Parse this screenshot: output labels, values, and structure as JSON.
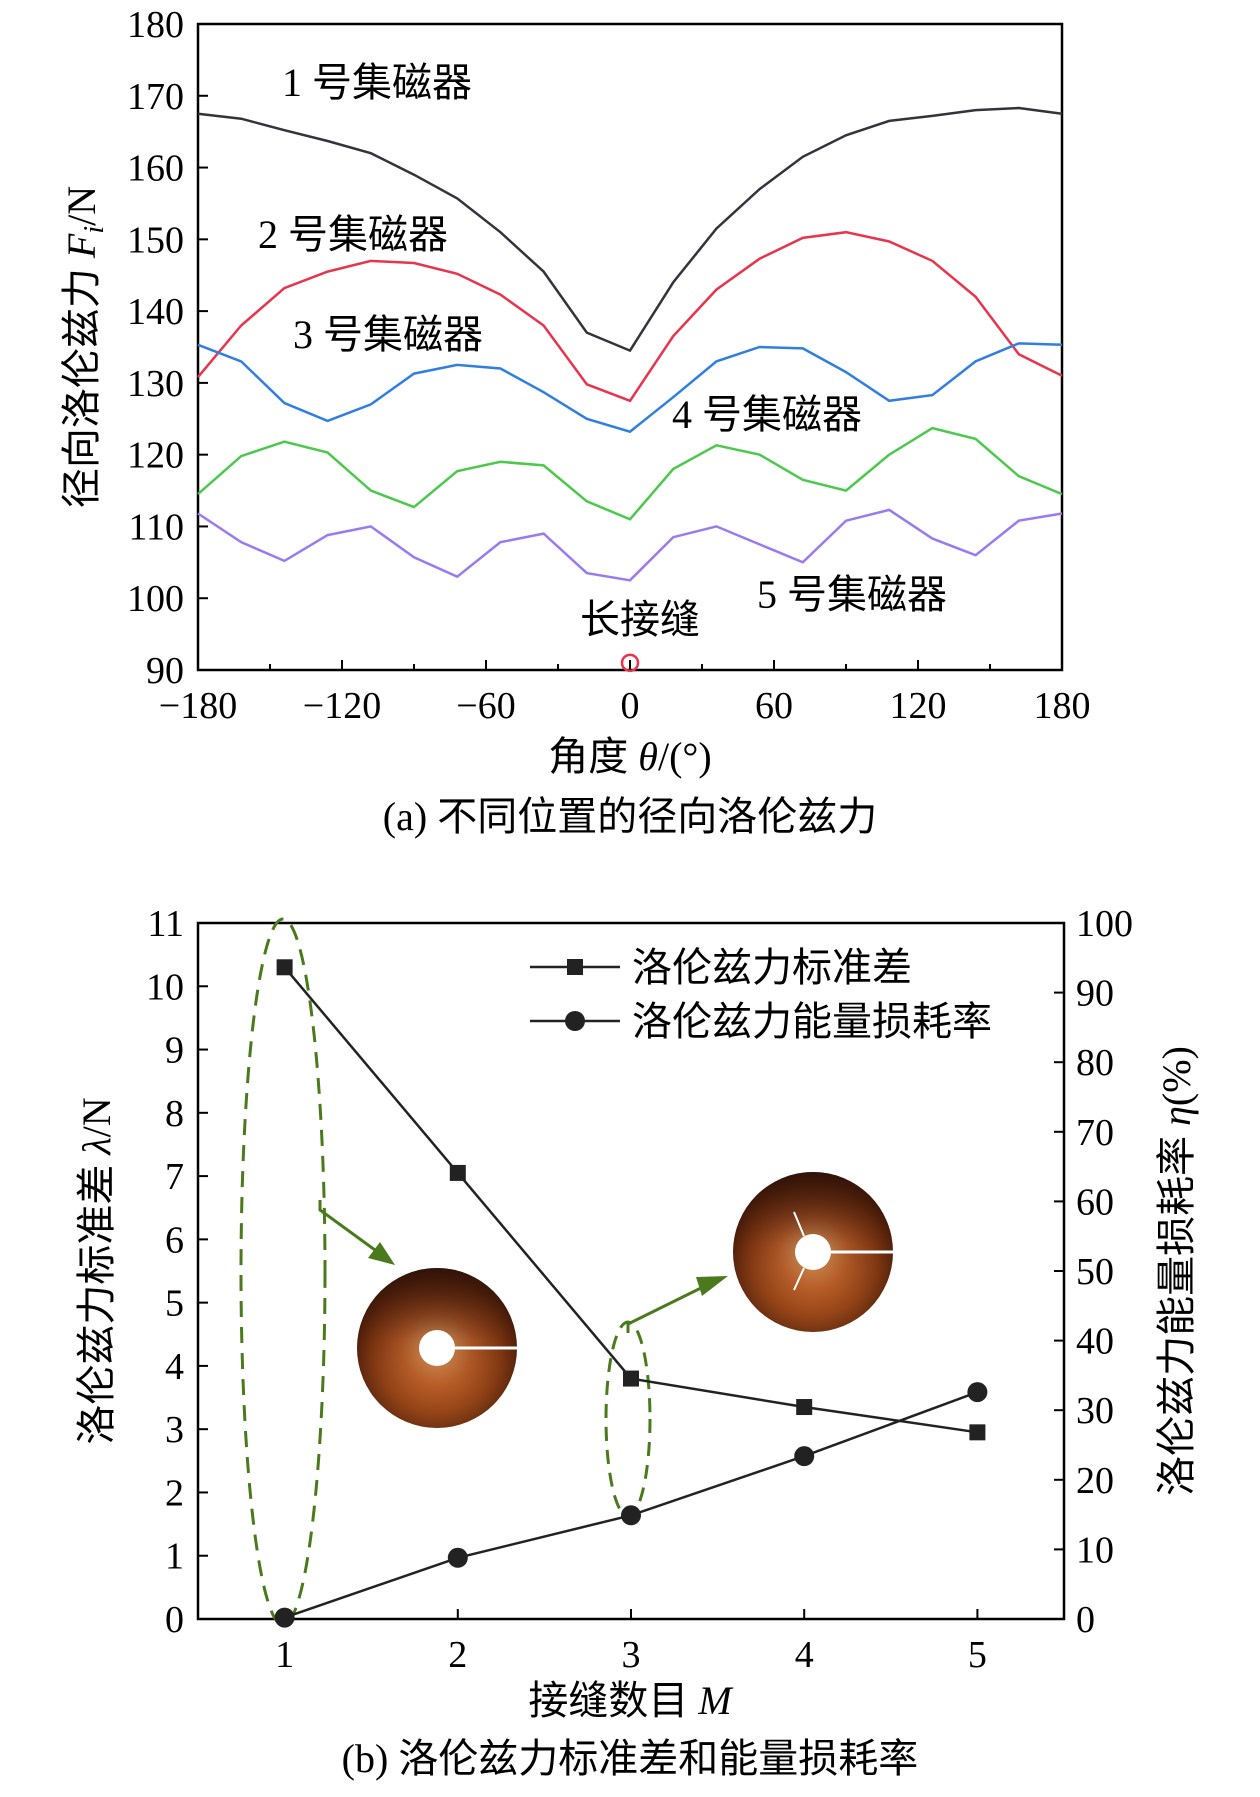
{
  "chart_data": [
    {
      "type": "line",
      "caption": "(a) 不同位置的径向洛伦兹力",
      "xlabel": "角度 θ/(°)",
      "ylabel": "径向洛伦兹力 Fi/N",
      "xlim": [
        -180,
        180
      ],
      "ylim": [
        90,
        180
      ],
      "xticks": [
        -180,
        -120,
        -60,
        0,
        60,
        120,
        180
      ],
      "yticks": [
        90,
        100,
        110,
        120,
        130,
        140,
        150,
        160,
        170,
        180
      ],
      "x": [
        -180,
        -162,
        -144,
        -126,
        -108,
        -90,
        -72,
        -54,
        -36,
        -18,
        0,
        18,
        36,
        54,
        72,
        90,
        108,
        126,
        144,
        162,
        180
      ],
      "series": [
        {
          "name": "1 号集磁器",
          "color": "#33333d",
          "values": [
            167.5,
            166.8,
            165.2,
            163.7,
            162.0,
            159.0,
            155.7,
            151.0,
            145.5,
            137.0,
            134.5,
            144.0,
            151.5,
            157.0,
            161.5,
            164.5,
            166.5,
            167.2,
            168.0,
            168.3,
            167.5
          ]
        },
        {
          "name": "2 号集磁器",
          "color": "#e8344c",
          "values": [
            130.8,
            138.0,
            143.2,
            145.5,
            147.0,
            146.7,
            145.2,
            142.3,
            138.0,
            129.8,
            127.5,
            136.5,
            143.0,
            147.3,
            150.2,
            151.0,
            149.7,
            147.0,
            142.0,
            134.0,
            131.0
          ]
        },
        {
          "name": "3 号集磁器",
          "color": "#2f7fe0",
          "values": [
            135.3,
            133.0,
            127.2,
            124.7,
            127.0,
            131.3,
            132.5,
            132.0,
            128.7,
            125.0,
            123.2,
            128.0,
            133.0,
            135.0,
            134.8,
            131.5,
            127.5,
            128.3,
            133.0,
            135.5,
            135.3
          ]
        },
        {
          "name": "4 号集磁器",
          "color": "#4cc94c",
          "values": [
            114.5,
            119.8,
            121.8,
            120.3,
            115.0,
            112.7,
            117.7,
            119.0,
            118.5,
            113.5,
            111.0,
            118.0,
            121.3,
            120.0,
            116.5,
            115.0,
            120.0,
            123.7,
            122.2,
            117.0,
            114.5
          ]
        },
        {
          "name": "5 号集磁器",
          "color": "#9a7af0",
          "values": [
            111.8,
            107.8,
            105.2,
            108.8,
            110.0,
            105.7,
            103.0,
            107.8,
            109.0,
            103.5,
            102.5,
            108.5,
            110.0,
            107.5,
            105.0,
            110.8,
            112.3,
            108.3,
            106.0,
            110.8,
            111.8
          ]
        }
      ],
      "annotation": {
        "text": "长接缝",
        "x": 0,
        "y": 91,
        "color": "#e8344c"
      }
    },
    {
      "type": "line",
      "caption": "(b) 洛伦兹力标准差和能量损耗率",
      "xlabel": "接缝数目 M",
      "ylabel_left": "洛伦兹力标准差 λ/N",
      "ylabel_right": "洛伦兹力能量损耗率 η(%)",
      "xlim": [
        0.5,
        5.5
      ],
      "ylim_left": [
        0,
        11
      ],
      "ylim_right": [
        0,
        100
      ],
      "xticks": [
        1,
        2,
        3,
        4,
        5
      ],
      "yticks_left": [
        0,
        1,
        2,
        3,
        4,
        5,
        6,
        7,
        8,
        9,
        10,
        11
      ],
      "yticks_right": [
        0,
        10,
        20,
        30,
        40,
        50,
        60,
        70,
        80,
        90,
        100
      ],
      "x": [
        1,
        2,
        3,
        4,
        5
      ],
      "series": [
        {
          "name": "洛伦兹力标准差",
          "axis": "left",
          "marker": "square",
          "color": "#222222",
          "values": [
            10.3,
            7.05,
            3.8,
            3.35,
            2.95
          ]
        },
        {
          "name": "洛伦兹力能量损耗率",
          "axis": "right",
          "marker": "circle",
          "color": "#222222",
          "values": [
            0.2,
            8.8,
            14.9,
            23.4,
            32.6
          ]
        }
      ],
      "legend_position": "top-right",
      "highlight_color": "#4a7a1c"
    }
  ]
}
